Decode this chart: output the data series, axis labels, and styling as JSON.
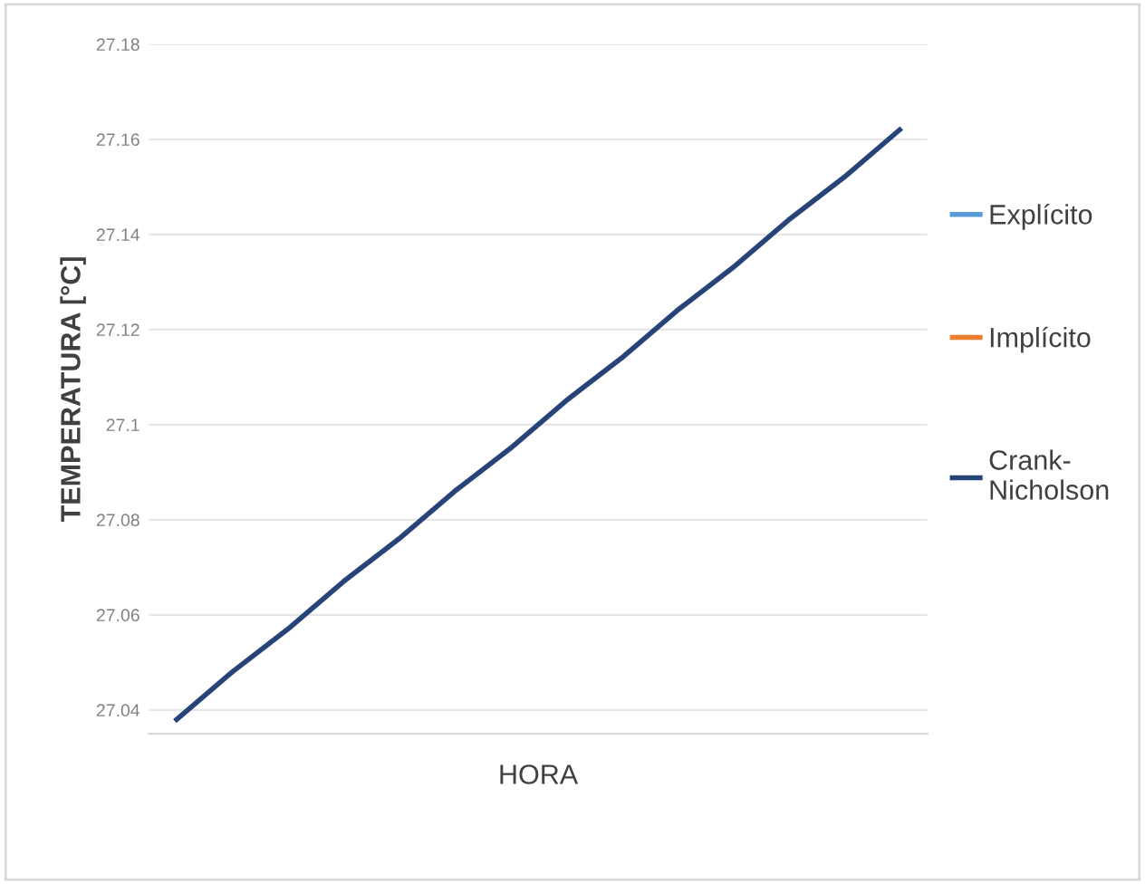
{
  "chart_data": {
    "type": "line",
    "xlabel": "HORA",
    "ylabel": "TEMPERATURA [°C]",
    "categories": [
      null,
      null,
      null,
      null,
      null,
      null,
      null,
      null,
      null,
      null,
      null,
      null,
      null,
      null
    ],
    "series": [
      {
        "name": "Explícito",
        "color": "#5b9bd5",
        "values": [
          null,
          null,
          null,
          null,
          null,
          null,
          null,
          null,
          null,
          null,
          null,
          null,
          null,
          null
        ]
      },
      {
        "name": "Implícito",
        "color": "#ed7d31",
        "values": [
          null,
          null,
          null,
          null,
          null,
          null,
          null,
          null,
          null,
          null,
          null,
          null,
          null,
          null
        ]
      },
      {
        "name": "Crank-\nNicholson",
        "color": "#264478",
        "values": [
          27.038,
          27.048,
          27.057,
          27.067,
          27.076,
          27.086,
          27.095,
          27.105,
          27.114,
          27.124,
          27.133,
          27.143,
          27.152,
          27.162
        ]
      }
    ],
    "ylim": [
      27.035,
      27.18
    ],
    "yticks": [
      27.04,
      27.06,
      27.08,
      27.1,
      27.12,
      27.14,
      27.16,
      27.18
    ],
    "grid": "y",
    "legend": "right",
    "marker": "none",
    "line_style": "solid",
    "tick_labels": "y"
  }
}
